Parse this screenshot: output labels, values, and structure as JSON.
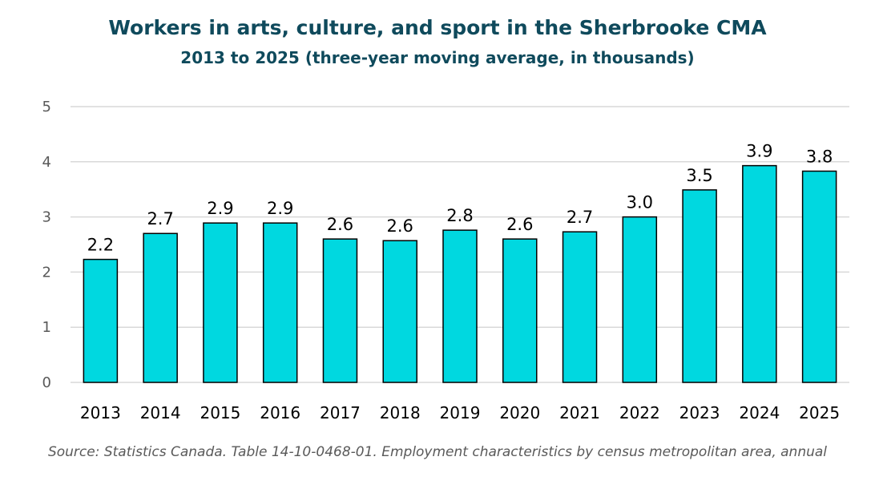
{
  "chart_data": {
    "type": "bar",
    "title": "Workers in arts, culture, and sport in the Sherbrooke CMA",
    "subtitle": "2013 to 2025 (three-year moving average, in thousands)",
    "categories": [
      "2013",
      "2014",
      "2015",
      "2016",
      "2017",
      "2018",
      "2019",
      "2020",
      "2021",
      "2022",
      "2023",
      "2024",
      "2025"
    ],
    "values": [
      2.23,
      2.7,
      2.89,
      2.89,
      2.6,
      2.57,
      2.76,
      2.6,
      2.73,
      3.0,
      3.49,
      3.93,
      3.83
    ],
    "data_labels": [
      "2.2",
      "2.7",
      "2.9",
      "2.9",
      "2.6",
      "2.6",
      "2.8",
      "2.6",
      "2.7",
      "3.0",
      "3.5",
      "3.9",
      "3.8"
    ],
    "ylim": [
      0,
      5
    ],
    "yticks": [
      0,
      1,
      2,
      3,
      4,
      5
    ],
    "grid": true,
    "legend": "none",
    "colors": {
      "bar": "#00d8e0",
      "bar_edge": "#000000",
      "title": "#0f4a5c",
      "grid": "#d9d9d9"
    },
    "source": "Source: Statistics Canada. Table 14-10-0468-01. Employment characteristics by census metropolitan area, annual"
  }
}
